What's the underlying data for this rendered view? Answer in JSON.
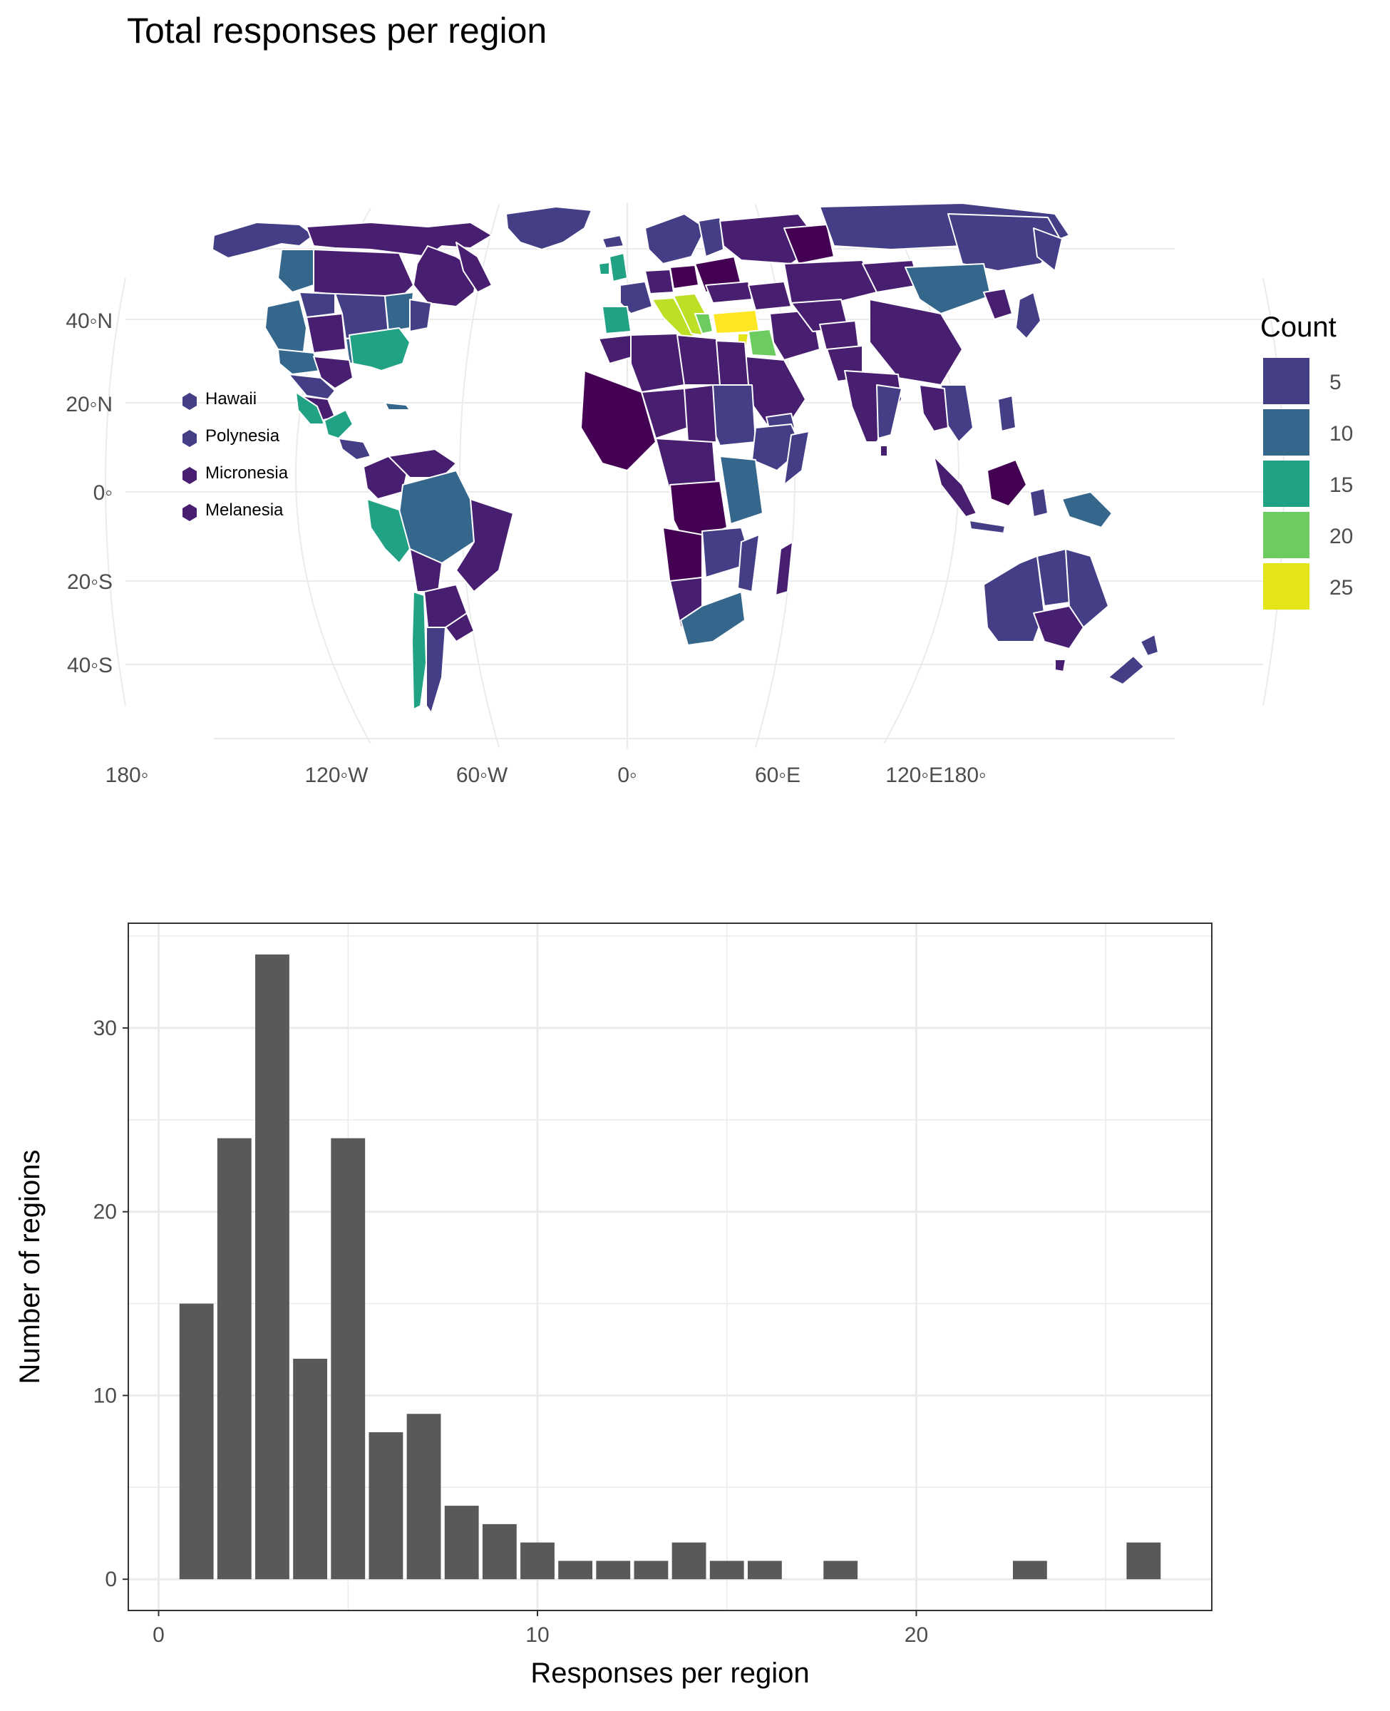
{
  "title": "Total responses per region",
  "chart_data": [
    {
      "type": "choropleth-map",
      "projection": "Robinson",
      "title": "Total responses per region",
      "lat_ticks": [
        "40◦N",
        "20◦N",
        "0◦",
        "20◦S",
        "40◦S"
      ],
      "lon_ticks": [
        "180◦",
        "120◦W",
        "60◦W",
        "0◦",
        "60◦E",
        "120◦E180◦"
      ],
      "legend": {
        "title": "Count",
        "placement": "right",
        "entries": [
          {
            "label": "5",
            "color": "#433e85"
          },
          {
            "label": "10",
            "color": "#35678c"
          },
          {
            "label": "15",
            "color": "#22a285"
          },
          {
            "label": "20",
            "color": "#6ccc5f"
          },
          {
            "label": "25",
            "color": "#e4e41a"
          }
        ]
      },
      "island_labels": [
        {
          "label": "Hawaii",
          "color": "#433e85"
        },
        {
          "label": "Polynesia",
          "color": "#433e85"
        },
        {
          "label": "Micronesia",
          "color": "#481f70"
        },
        {
          "label": "Melanesia",
          "color": "#481f70"
        }
      ],
      "colors": {
        "darkest": "#440154",
        "dark": "#481f70",
        "purple": "#433e85",
        "blue": "#35678c",
        "teal": "#22a285",
        "green": "#6ccc5f",
        "yellow": "#e4e41a",
        "yellow_max": "#fde725"
      }
    },
    {
      "type": "bar",
      "xlabel": "Responses per region",
      "ylabel": "Number of regions",
      "x": [
        1,
        2,
        3,
        4,
        5,
        6,
        7,
        8,
        9,
        10,
        11,
        12,
        13,
        14,
        15,
        16,
        18,
        23,
        26
      ],
      "values": [
        15,
        24,
        34,
        12,
        24,
        8,
        9,
        4,
        3,
        2,
        1,
        1,
        1,
        2,
        1,
        1,
        1,
        1,
        2
      ],
      "xlim": [
        -0.8,
        27.8
      ],
      "ylim": [
        -1.7,
        35.7
      ],
      "xticks": [
        "0",
        "10",
        "20"
      ],
      "yticks": [
        "0",
        "10",
        "20",
        "30"
      ],
      "grid": true,
      "bar_color": "#595959"
    }
  ]
}
